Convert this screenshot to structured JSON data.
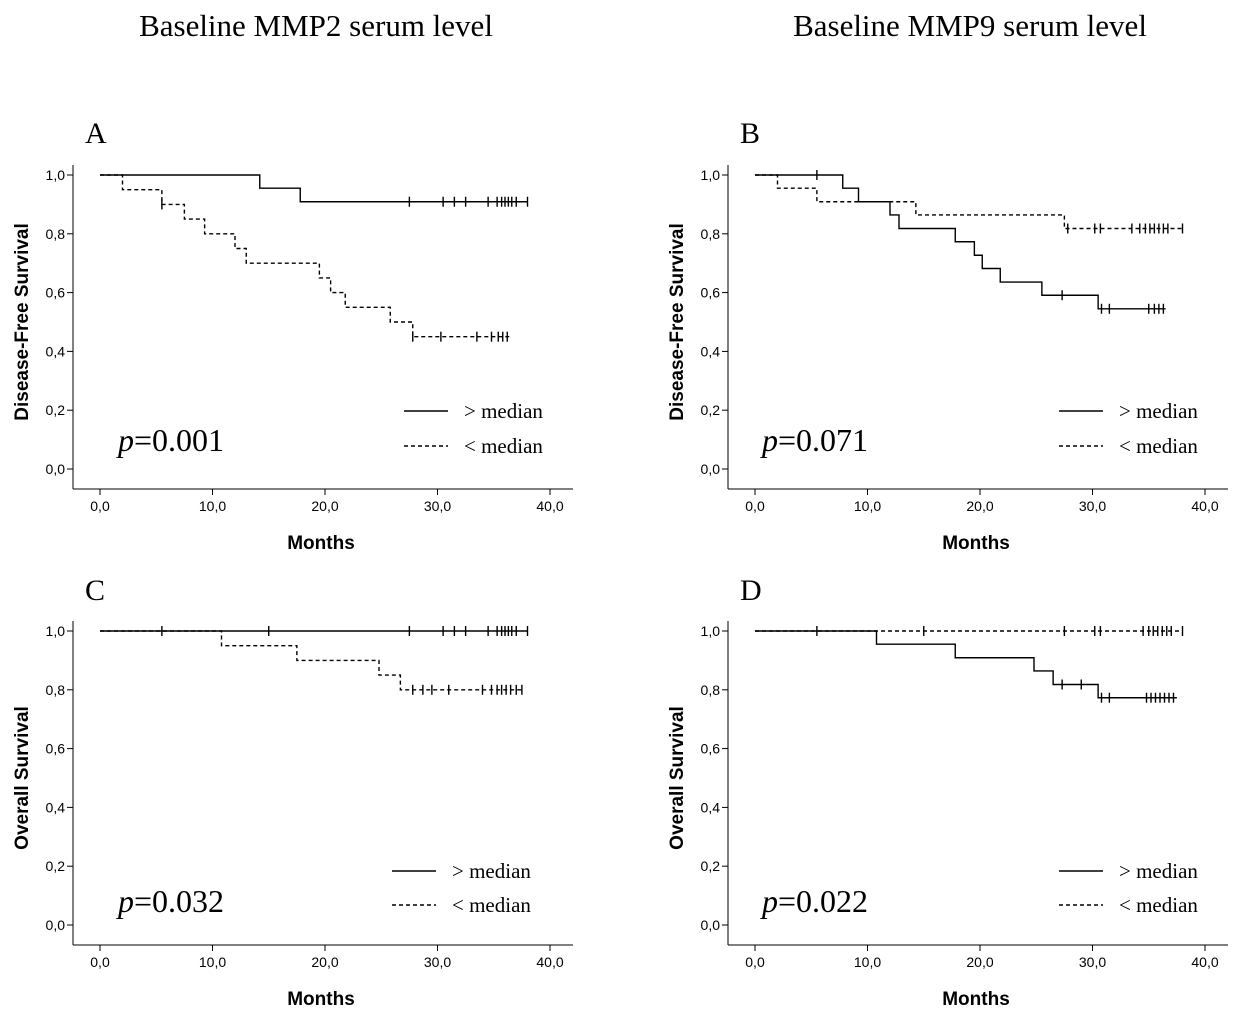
{
  "figure": {
    "column_titles": [
      "Baseline MMP2 serum level",
      "Baseline MMP9 serum level"
    ]
  },
  "chart_data": [
    {
      "type": "line",
      "panel_label": "A",
      "xlabel": "Months",
      "ylabel": "Disease-Free Survival",
      "xlim": [
        0,
        40
      ],
      "ylim": [
        0,
        1
      ],
      "xticks": [
        "0,0",
        "10,0",
        "20,0",
        "30,0",
        "40,0"
      ],
      "yticks": [
        "0,0",
        "0,2",
        "0,4",
        "0,6",
        "0,8",
        "1,0"
      ],
      "p_label": "p",
      "p_value": "=0.001",
      "legend_position": "bottom-right",
      "series": [
        {
          "name": "> median",
          "style": "solid",
          "steps": [
            [
              0,
              1.0
            ],
            [
              14.2,
              0.955
            ],
            [
              17.8,
              0.909
            ],
            [
              38.0,
              0.909
            ]
          ],
          "censor_x": [
            27.5,
            30.5,
            31.5,
            32.5,
            34.5,
            35.3,
            35.7,
            36.0,
            36.3,
            36.6,
            37.0,
            38.0
          ]
        },
        {
          "name": "< median",
          "style": "dashed",
          "steps": [
            [
              0,
              1.0
            ],
            [
              2.0,
              0.95
            ],
            [
              5.5,
              0.9
            ],
            [
              7.5,
              0.85
            ],
            [
              9.3,
              0.8
            ],
            [
              12.0,
              0.75
            ],
            [
              13.0,
              0.7
            ],
            [
              19.5,
              0.65
            ],
            [
              20.5,
              0.6
            ],
            [
              21.8,
              0.55
            ],
            [
              25.8,
              0.5
            ],
            [
              27.8,
              0.45
            ],
            [
              36.5,
              0.45
            ]
          ],
          "censor_x": [
            5.5,
            27.8,
            30.3,
            33.5,
            34.8,
            35.4,
            35.8,
            36.2
          ]
        }
      ]
    },
    {
      "type": "line",
      "panel_label": "B",
      "xlabel": "Months",
      "ylabel": "Disease-Free Survival",
      "xlim": [
        0,
        40
      ],
      "ylim": [
        0,
        1
      ],
      "xticks": [
        "0,0",
        "10,0",
        "20,0",
        "30,0",
        "40,0"
      ],
      "yticks": [
        "0,0",
        "0,2",
        "0,4",
        "0,6",
        "0,8",
        "1,0"
      ],
      "p_label": "p",
      "p_value": "=0.071",
      "legend_position": "bottom-right",
      "series": [
        {
          "name": "> median",
          "style": "solid",
          "steps": [
            [
              0,
              1.0
            ],
            [
              7.8,
              0.955
            ],
            [
              9.2,
              0.909
            ],
            [
              12.0,
              0.864
            ],
            [
              12.8,
              0.818
            ],
            [
              17.8,
              0.773
            ],
            [
              19.5,
              0.727
            ],
            [
              20.2,
              0.682
            ],
            [
              21.8,
              0.636
            ],
            [
              25.5,
              0.591
            ],
            [
              30.5,
              0.545
            ],
            [
              36.5,
              0.545
            ]
          ],
          "censor_x": [
            5.5,
            27.3,
            30.8,
            31.5,
            35.0,
            35.5,
            35.9,
            36.3
          ]
        },
        {
          "name": "< median",
          "style": "dashed",
          "steps": [
            [
              0,
              1.0
            ],
            [
              2.0,
              0.955
            ],
            [
              5.5,
              0.909
            ],
            [
              14.3,
              0.864
            ],
            [
              27.5,
              0.818
            ],
            [
              38.0,
              0.818
            ]
          ],
          "censor_x": [
            27.8,
            30.2,
            30.7,
            33.5,
            34.2,
            34.7,
            35.1,
            35.5,
            35.9,
            36.3,
            36.7,
            38.0
          ]
        }
      ]
    },
    {
      "type": "line",
      "panel_label": "C",
      "xlabel": "Months",
      "ylabel": "Overall Survival",
      "xlim": [
        0,
        40
      ],
      "ylim": [
        0,
        1
      ],
      "xticks": [
        "0,0",
        "10,0",
        "20,0",
        "30,0",
        "40,0"
      ],
      "yticks": [
        "0,0",
        "0,2",
        "0,4",
        "0,6",
        "0,8",
        "1,0"
      ],
      "p_label": "p",
      "p_value": "=0.032",
      "legend_position": "bottom-right",
      "series": [
        {
          "name": "> median",
          "style": "solid",
          "steps": [
            [
              0,
              1.0
            ],
            [
              38.0,
              1.0
            ]
          ],
          "censor_x": [
            5.5,
            15.0,
            27.5,
            30.5,
            31.5,
            32.5,
            34.5,
            35.3,
            35.7,
            36.0,
            36.3,
            36.6,
            37.0,
            38.0
          ]
        },
        {
          "name": "< median",
          "style": "dashed",
          "steps": [
            [
              0,
              1.0
            ],
            [
              10.8,
              0.95
            ],
            [
              17.5,
              0.9
            ],
            [
              24.8,
              0.85
            ],
            [
              26.7,
              0.8
            ],
            [
              37.5,
              0.8
            ]
          ],
          "censor_x": [
            27.8,
            28.7,
            29.5,
            31.0,
            34.0,
            34.8,
            35.3,
            35.7,
            36.1,
            36.5,
            37.0,
            37.5
          ]
        }
      ]
    },
    {
      "type": "line",
      "panel_label": "D",
      "xlabel": "Months",
      "ylabel": "Overall Survival",
      "xlim": [
        0,
        40
      ],
      "ylim": [
        0,
        1
      ],
      "xticks": [
        "0,0",
        "10,0",
        "20,0",
        "30,0",
        "40,0"
      ],
      "yticks": [
        "0,0",
        "0,2",
        "0,4",
        "0,6",
        "0,8",
        "1,0"
      ],
      "p_label": "p",
      "p_value": "=0.022",
      "legend_position": "bottom-right",
      "series": [
        {
          "name": "> median",
          "style": "solid",
          "steps": [
            [
              0,
              1.0
            ],
            [
              10.8,
              0.955
            ],
            [
              17.8,
              0.909
            ],
            [
              24.8,
              0.864
            ],
            [
              26.5,
              0.818
            ],
            [
              30.5,
              0.773
            ],
            [
              37.5,
              0.773
            ]
          ],
          "censor_x": [
            27.3,
            29.0,
            30.8,
            31.5,
            34.8,
            35.2,
            35.6,
            36.0,
            36.4,
            36.8,
            37.2
          ]
        },
        {
          "name": "< median",
          "style": "dashed",
          "steps": [
            [
              0,
              1.0
            ],
            [
              38.0,
              1.0
            ]
          ],
          "censor_x": [
            5.5,
            15.0,
            27.5,
            30.2,
            30.7,
            34.5,
            35.0,
            35.4,
            35.8,
            36.2,
            36.6,
            37.0,
            38.0
          ]
        }
      ]
    }
  ]
}
